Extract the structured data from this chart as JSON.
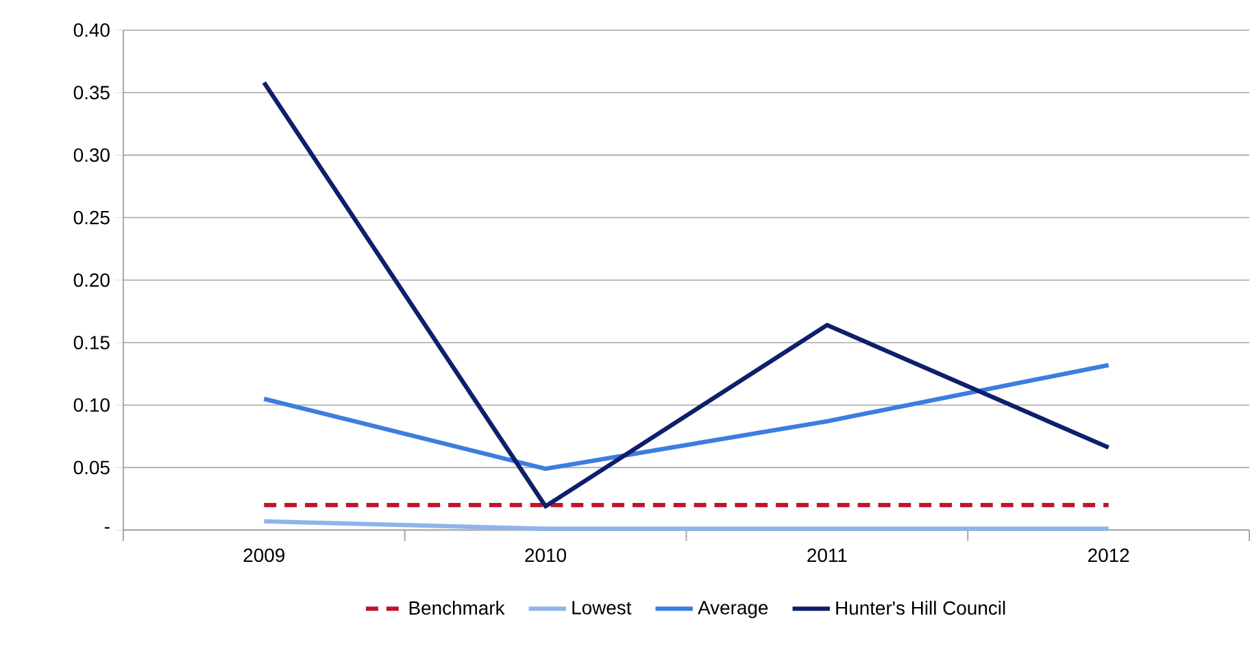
{
  "chart_data": {
    "type": "line",
    "categories": [
      "2009",
      "2010",
      "2011",
      "2012"
    ],
    "series": [
      {
        "name": "Benchmark",
        "color": "#c0142c",
        "line_style": "dashed",
        "values": [
          0.02,
          0.02,
          0.02,
          0.02
        ]
      },
      {
        "name": "Lowest",
        "color": "#8fb4ea",
        "values": [
          0.007,
          0.001,
          0.001,
          0.001
        ]
      },
      {
        "name": "Average",
        "color": "#3d7de0",
        "values": [
          0.105,
          0.049,
          0.087,
          0.132
        ]
      },
      {
        "name": "Hunter's Hill Council",
        "color": "#0e1f6b",
        "values": [
          0.358,
          0.019,
          0.164,
          0.066
        ]
      }
    ],
    "ylim": [
      0,
      0.4
    ],
    "yticks": [
      {
        "value": 0,
        "label": "-"
      },
      0.05,
      {
        "value": 0.1,
        "label": "0.10"
      },
      0.15,
      {
        "value": 0.2,
        "label": "0.20"
      },
      0.25,
      {
        "value": 0.3,
        "label": "0.30"
      },
      0.35,
      {
        "value": 0.4,
        "label": "0.40"
      }
    ],
    "grid": "y",
    "legend": "bottom",
    "marker": "none"
  }
}
